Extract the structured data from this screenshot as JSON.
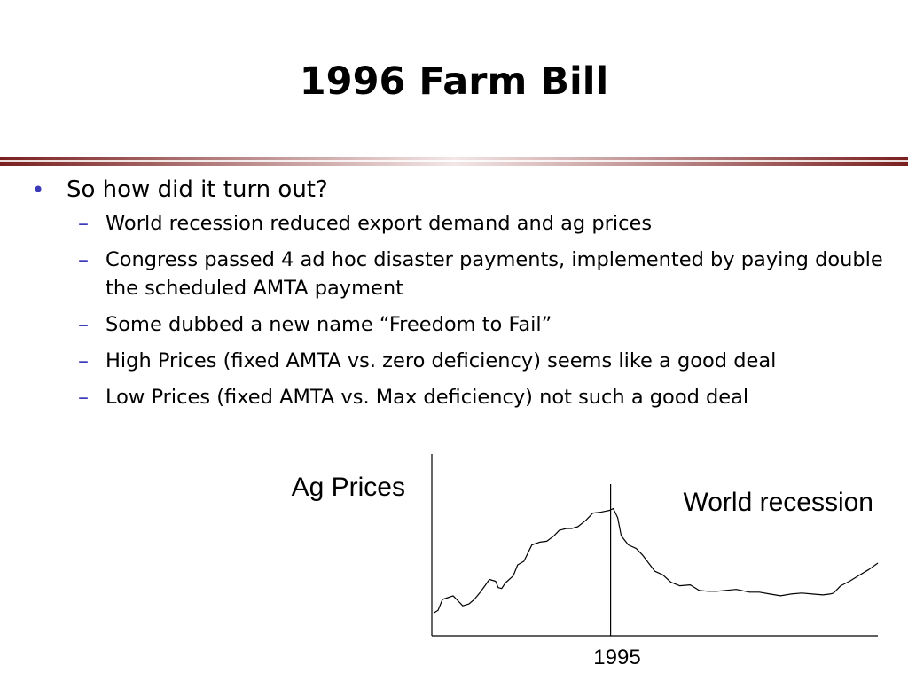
{
  "slide": {
    "title": "1996 Farm Bill",
    "bullets": [
      {
        "text": "So how did it turn out?",
        "sub": [
          "World recession reduced export demand and ag prices",
          "Congress passed 4 ad hoc disaster payments, implemented by paying double the scheduled AMTA payment",
          "Some dubbed a new name “Freedom to Fail”",
          "High Prices (fixed AMTA vs. zero deficiency) seems like a good deal",
          "Low Prices (fixed AMTA vs. Max deficiency) not such a good deal"
        ]
      }
    ],
    "bullet_marker": "•",
    "sub_marker": "–"
  },
  "colors": {
    "rule_dark": "#7a1f1f",
    "bullet": "#3a3ab8"
  },
  "chart_data": {
    "type": "line",
    "ylabel": "Ag Prices",
    "xtick_label": "1995",
    "annotation": "World recession",
    "series": [
      {
        "name": "",
        "x": [
          0,
          5,
          10,
          16,
          22,
          28,
          33,
          40,
          46,
          52,
          58,
          63,
          70,
          73,
          77,
          81,
          90,
          95,
          102,
          106,
          111,
          120,
          128,
          136,
          142,
          146,
          150,
          156,
          163,
          172,
          180,
          189,
          199,
          203,
          208,
          212,
          220,
          229,
          236,
          250,
          259,
          268,
          278,
          290,
          300,
          310,
          320,
          330,
          342,
          357,
          368,
          380,
          392,
          404,
          416,
          428,
          440,
          448,
          452,
          460,
          470,
          480,
          492,
          502
        ],
        "y": [
          25,
          28,
          40,
          42,
          44,
          38,
          33,
          35,
          40,
          47,
          55,
          62,
          60,
          53,
          52,
          58,
          66,
          78,
          82,
          90,
          100,
          103,
          104,
          110,
          116,
          117,
          118,
          118,
          120,
          127,
          135,
          136,
          138,
          140,
          130,
          110,
          100,
          96,
          89,
          71,
          67,
          59,
          55,
          56,
          50,
          49,
          49,
          50,
          51,
          48,
          48,
          46,
          44,
          46,
          47,
          46,
          45,
          46,
          47,
          55,
          60,
          66,
          73,
          80
        ]
      }
    ],
    "event_x": 200,
    "xlim": [
      0,
      502
    ],
    "ylim": [
      0,
      200
    ],
    "grid": false
  }
}
